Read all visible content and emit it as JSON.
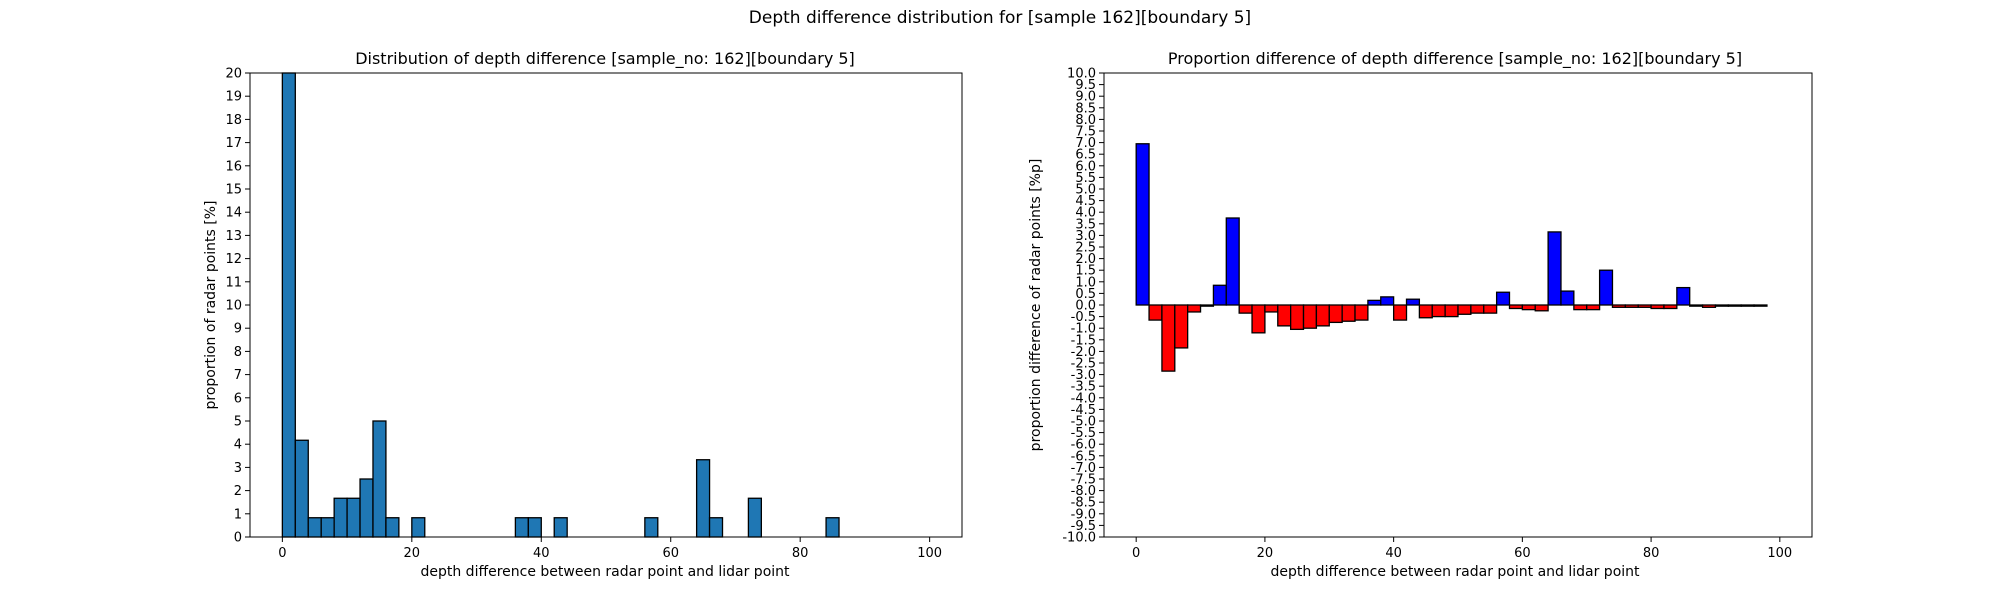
{
  "suptitle": "Depth difference distribution for [sample 162][boundary 5]",
  "chart_data": [
    {
      "type": "bar",
      "title": "Distribution of depth difference [sample_no: 162][boundary 5]",
      "xlabel": "depth difference between radar point and lidar point",
      "ylabel": "proportion of radar points [%]",
      "xlim": [
        -5,
        105
      ],
      "ylim": [
        0,
        20
      ],
      "xticks": [
        0,
        20,
        40,
        60,
        80,
        100
      ],
      "yticks": [
        0,
        1,
        2,
        3,
        4,
        5,
        6,
        7,
        8,
        9,
        10,
        11,
        12,
        13,
        14,
        15,
        16,
        17,
        18,
        19,
        20
      ],
      "bin_width": 2,
      "bin_starts": [
        0,
        2,
        4,
        6,
        8,
        10,
        12,
        14,
        16,
        18,
        20,
        22,
        24,
        26,
        28,
        30,
        32,
        34,
        36,
        38,
        40,
        42,
        44,
        46,
        48,
        50,
        52,
        54,
        56,
        58,
        60,
        62,
        64,
        66,
        68,
        70,
        72,
        74,
        76,
        78,
        80,
        82,
        84,
        86,
        88,
        90,
        92,
        94,
        96,
        98
      ],
      "values": [
        20,
        4.17,
        0.83,
        0.83,
        1.67,
        1.67,
        2.5,
        5.0,
        0.83,
        0,
        0.83,
        0,
        0,
        0,
        0,
        0,
        0,
        0,
        0.83,
        0.83,
        0,
        0.83,
        0,
        0,
        0,
        0,
        0,
        0,
        0.83,
        0,
        0,
        0,
        3.33,
        0.83,
        0,
        0,
        1.67,
        0,
        0,
        0,
        0,
        0,
        0.83,
        0,
        0,
        0,
        0,
        0,
        0,
        0
      ],
      "color": "#1f77b4",
      "edgecolor": "#000000",
      "grid": false
    },
    {
      "type": "bar",
      "title": "Proportion difference of depth difference [sample_no: 162][boundary 5]",
      "xlabel": "depth difference between radar point and lidar point",
      "ylabel": "proportion difference of radar points [%p]",
      "xlim": [
        -5,
        105
      ],
      "ylim": [
        -10,
        10
      ],
      "xticks": [
        0,
        20,
        40,
        60,
        80,
        100
      ],
      "yticks": [
        "-10.0",
        "-9.5",
        "-9.0",
        "-8.5",
        "-8.0",
        "-7.5",
        "-7.0",
        "-6.5",
        "-6.0",
        "-5.5",
        "-5.0",
        "-4.5",
        "-4.0",
        "-3.5",
        "-3.0",
        "-2.5",
        "-2.0",
        "-1.5",
        "-1.0",
        "-0.5",
        "0.0",
        "0.5",
        "1.0",
        "1.5",
        "2.0",
        "2.5",
        "3.0",
        "3.5",
        "4.0",
        "4.5",
        "5.0",
        "5.5",
        "6.0",
        "6.5",
        "7.0",
        "7.5",
        "8.0",
        "8.5",
        "9.0",
        "9.5",
        "10.0"
      ],
      "bin_width": 2,
      "bin_starts": [
        0,
        2,
        4,
        6,
        8,
        10,
        12,
        14,
        16,
        18,
        20,
        22,
        24,
        26,
        28,
        30,
        32,
        34,
        36,
        38,
        40,
        42,
        44,
        46,
        48,
        50,
        52,
        54,
        56,
        58,
        60,
        62,
        64,
        66,
        68,
        70,
        72,
        74,
        76,
        78,
        80,
        82,
        84,
        86,
        88,
        90,
        92,
        94,
        96,
        98
      ],
      "values": [
        6.95,
        -0.65,
        -2.85,
        -1.85,
        -0.3,
        -0.05,
        0.85,
        3.75,
        -0.35,
        -1.2,
        -0.3,
        -0.9,
        -1.05,
        -1.0,
        -0.9,
        -0.75,
        -0.7,
        -0.65,
        0.2,
        0.35,
        -0.65,
        0.25,
        -0.55,
        -0.5,
        -0.5,
        -0.4,
        -0.35,
        -0.35,
        0.55,
        -0.15,
        -0.2,
        -0.25,
        3.15,
        0.6,
        -0.2,
        -0.2,
        1.5,
        -0.1,
        -0.1,
        -0.1,
        -0.15,
        -0.15,
        0.75,
        -0.05,
        -0.1,
        -0.05,
        -0.05,
        -0.05,
        -0.05,
        0.0
      ],
      "positive_color": "#0000ff",
      "negative_color": "#ff0000",
      "edgecolor": "#000000",
      "grid": false
    }
  ]
}
